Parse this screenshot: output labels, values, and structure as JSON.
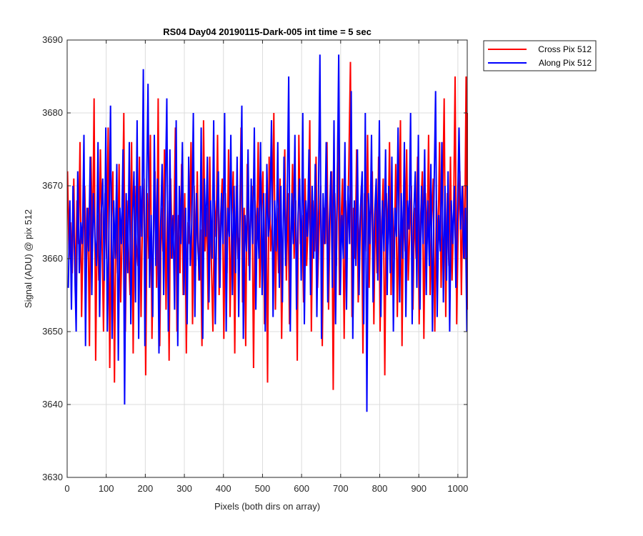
{
  "chart_data": {
    "type": "line",
    "title": "RS04 Day04 20190115-Dark-005 int time = 5 sec",
    "xlabel": "Pixels (both dirs on array)",
    "ylabel": "Signal (ADU) @ pix 512",
    "xlim": [
      0,
      1024
    ],
    "ylim": [
      3630,
      3690
    ],
    "xticks": [
      0,
      100,
      200,
      300,
      400,
      500,
      600,
      700,
      800,
      900,
      1000
    ],
    "yticks": [
      3630,
      3640,
      3650,
      3660,
      3670,
      3680,
      3690
    ],
    "grid": true,
    "legend_position": "outside-top-right",
    "series": [
      {
        "name": "Cross Pix 512",
        "color": "#ff0000",
        "x_start": 1,
        "x_step": 4,
        "values": [
          3672,
          3660,
          3665,
          3658,
          3671,
          3655,
          3668,
          3662,
          3676,
          3652,
          3664,
          3670,
          3659,
          3667,
          3648,
          3674,
          3661,
          3682,
          3646,
          3666,
          3657,
          3675,
          3663,
          3650,
          3669,
          3660,
          3678,
          3645,
          3665,
          3672,
          3643,
          3667,
          3658,
          3673,
          3654,
          3664,
          3680,
          3650,
          3668,
          3661,
          3655,
          3676,
          3647,
          3670,
          3662,
          3659,
          3674,
          3652,
          3666,
          3671,
          3644,
          3669,
          3660,
          3677,
          3649,
          3663,
          3672,
          3656,
          3682,
          3648,
          3667,
          3661,
          3675,
          3653,
          3668,
          3646,
          3671,
          3660,
          3664,
          3678,
          3650,
          3666,
          3658,
          3673,
          3655,
          3669,
          3647,
          3665,
          3662,
          3676,
          3651,
          3670,
          3659,
          3672,
          3657,
          3664,
          3648,
          3679,
          3661,
          3667,
          3653,
          3674,
          3660,
          3650,
          3668,
          3663,
          3677,
          3655,
          3666,
          3671,
          3649,
          3669,
          3658,
          3675,
          3652,
          3665,
          3672,
          3647,
          3670,
          3660,
          3663,
          3678,
          3654,
          3667,
          3648,
          3673,
          3659,
          3664,
          3670,
          3645,
          3668,
          3662,
          3676,
          3656,
          3666,
          3672,
          3651,
          3669,
          3643,
          3674,
          3661,
          3665,
          3680,
          3653,
          3667,
          3658,
          3671,
          3649,
          3664,
          3675,
          3657,
          3669,
          3651,
          3663,
          3673,
          3660,
          3668,
          3646,
          3677,
          3662,
          3666,
          3654,
          3671,
          3659,
          3665,
          3679,
          3650,
          3668,
          3661,
          3674,
          3656,
          3664,
          3670,
          3648,
          3667,
          3662,
          3676,
          3653,
          3666,
          3672,
          3642,
          3669,
          3659,
          3678,
          3655,
          3665,
          3671,
          3649,
          3668,
          3662,
          3673,
          3687,
          3652,
          3667,
          3660,
          3675,
          3654,
          3664,
          3670,
          3647,
          3669,
          3661,
          3677,
          3656,
          3666,
          3672,
          3651,
          3668,
          3658,
          3674,
          3650,
          3665,
          3671,
          3644,
          3669,
          3662,
          3676,
          3655,
          3667,
          3660,
          3673,
          3652,
          3666,
          3679,
          3648,
          3668,
          3661,
          3675,
          3657,
          3664,
          3670,
          3653,
          3667,
          3660,
          3674,
          3651,
          3666,
          3672,
          3649,
          3669,
          3662,
          3677,
          3655,
          3665,
          3671,
          3650,
          3668,
          3661,
          3676,
          3656,
          3667,
          3682,
          3652,
          3669,
          3659,
          3674,
          3657,
          3666,
          3685,
          3651,
          3665,
          3672,
          3655,
          3670,
          3660,
          3685,
          3653,
          3668,
          3662,
          3680,
          3657,
          3673
        ]
      },
      {
        "name": "Along Pix 512",
        "color": "#0000ff",
        "x_start": 3,
        "x_step": 4,
        "values": [
          3656,
          3668,
          3653,
          3670,
          3660,
          3650,
          3672,
          3658,
          3665,
          3662,
          3677,
          3648,
          3667,
          3661,
          3674,
          3655,
          3669,
          3663,
          3659,
          3676,
          3652,
          3666,
          3671,
          3657,
          3678,
          3650,
          3664,
          3681,
          3649,
          3668,
          3660,
          3673,
          3646,
          3667,
          3662,
          3675,
          3640,
          3669,
          3658,
          3676,
          3651,
          3665,
          3672,
          3654,
          3679,
          3649,
          3670,
          3663,
          3686,
          3648,
          3668,
          3684,
          3656,
          3666,
          3652,
          3677,
          3659,
          3671,
          3647,
          3664,
          3673,
          3655,
          3668,
          3682,
          3650,
          3675,
          3660,
          3666,
          3653,
          3679,
          3648,
          3670,
          3662,
          3676,
          3655,
          3667,
          3651,
          3674,
          3659,
          3665,
          3680,
          3652,
          3669,
          3661,
          3657,
          3678,
          3649,
          3671,
          3663,
          3674,
          3654,
          3668,
          3660,
          3679,
          3651,
          3666,
          3672,
          3656,
          3669,
          3662,
          3680,
          3650,
          3667,
          3663,
          3677,
          3655,
          3670,
          3658,
          3674,
          3652,
          3668,
          3681,
          3649,
          3666,
          3661,
          3675,
          3657,
          3671,
          3662,
          3678,
          3653,
          3667,
          3660,
          3676,
          3655,
          3669,
          3650,
          3673,
          3663,
          3666,
          3679,
          3652,
          3668,
          3661,
          3676,
          3656,
          3670,
          3654,
          3674,
          3659,
          3667,
          3685,
          3650,
          3669,
          3662,
          3677,
          3653,
          3666,
          3671,
          3657,
          3680,
          3651,
          3668,
          3663,
          3675,
          3655,
          3670,
          3660,
          3673,
          3652,
          3667,
          3688,
          3649,
          3669,
          3662,
          3676,
          3654,
          3665,
          3672,
          3656,
          3679,
          3651,
          3668,
          3688,
          3655,
          3666,
          3660,
          3676,
          3653,
          3670,
          3662,
          3683,
          3649,
          3668,
          3659,
          3675,
          3655,
          3667,
          3672,
          3651,
          3680,
          3639,
          3669,
          3662,
          3677,
          3654,
          3666,
          3671,
          3657,
          3679,
          3652,
          3668,
          3661,
          3675,
          3655,
          3670,
          3658,
          3674,
          3650,
          3667,
          3663,
          3678,
          3654,
          3669,
          3660,
          3676,
          3652,
          3668,
          3664,
          3680,
          3651,
          3666,
          3672,
          3656,
          3677,
          3653,
          3670,
          3662,
          3675,
          3655,
          3668,
          3659,
          3673,
          3650,
          3669,
          3683,
          3652,
          3666,
          3661,
          3676,
          3654,
          3670,
          3657,
          3672,
          3650,
          3668,
          3662,
          3670,
          3656,
          3666,
          3678,
          3664,
          3670,
          3660,
          3667,
          3650,
          3670
        ]
      }
    ]
  }
}
